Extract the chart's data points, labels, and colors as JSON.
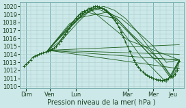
{
  "title": "",
  "xlabel": "Pression niveau de la mer( hPa )",
  "ylabel": "",
  "ylim": [
    1009.8,
    1020.5
  ],
  "xlim": [
    -4,
    148
  ],
  "background_color": "#cce8e8",
  "grid_color": "#aacccc",
  "line_color": "#1a5c1a",
  "marker_color": "#1a5c1a",
  "day_labels": [
    "Dim",
    "Ven",
    "Lun",
    "Mar",
    "Mer",
    "Jeu"
  ],
  "day_positions": [
    2,
    24,
    48,
    96,
    120,
    138
  ],
  "yticks": [
    1010,
    1011,
    1012,
    1013,
    1014,
    1015,
    1016,
    1017,
    1018,
    1019,
    1020
  ],
  "series": [
    {
      "x": [
        0,
        2,
        4,
        6,
        8,
        10,
        12,
        14,
        16,
        18,
        20,
        22,
        24,
        26,
        28,
        30,
        32,
        34,
        36,
        38,
        40,
        42,
        44,
        46,
        48,
        50,
        52,
        54,
        56,
        58,
        60,
        62,
        64,
        66,
        68,
        70,
        72,
        74,
        76,
        78,
        80,
        82,
        84,
        86,
        88,
        90,
        92,
        94,
        96,
        98,
        100,
        102,
        104,
        106,
        108,
        110,
        112,
        114,
        116,
        118,
        120,
        122,
        124,
        126,
        128,
        130,
        132,
        134,
        136,
        138,
        140,
        142,
        144
      ],
      "y": [
        1012.5,
        1012.8,
        1013.0,
        1013.3,
        1013.6,
        1013.8,
        1013.9,
        1014.0,
        1014.1,
        1014.2,
        1014.3,
        1014.4,
        1014.5,
        1014.6,
        1014.8,
        1015.0,
        1015.3,
        1015.7,
        1016.1,
        1016.5,
        1016.9,
        1017.3,
        1017.7,
        1018.1,
        1018.5,
        1018.8,
        1019.0,
        1019.2,
        1019.4,
        1019.5,
        1019.7,
        1019.8,
        1019.9,
        1020.0,
        1020.0,
        1019.9,
        1019.8,
        1019.7,
        1019.5,
        1019.3,
        1019.0,
        1018.7,
        1018.3,
        1017.9,
        1017.4,
        1016.8,
        1016.2,
        1015.6,
        1015.0,
        1014.4,
        1013.8,
        1013.3,
        1012.8,
        1012.4,
        1012.1,
        1011.8,
        1011.6,
        1011.4,
        1011.2,
        1011.1,
        1011.0,
        1010.9,
        1010.8,
        1010.8,
        1010.7,
        1010.8,
        1010.9,
        1011.0,
        1011.2,
        1011.3,
        1011.5,
        1012.0,
        1013.2
      ],
      "marker": true
    },
    {
      "x": [
        22,
        144
      ],
      "y": [
        1014.5,
        1012.2
      ],
      "marker": false
    },
    {
      "x": [
        22,
        144
      ],
      "y": [
        1014.5,
        1013.3
      ],
      "marker": false
    },
    {
      "x": [
        22,
        144
      ],
      "y": [
        1014.5,
        1014.0
      ],
      "marker": false
    },
    {
      "x": [
        22,
        144
      ],
      "y": [
        1014.5,
        1015.2
      ],
      "marker": false
    },
    {
      "x": [
        22,
        60,
        96,
        144
      ],
      "y": [
        1014.5,
        1019.8,
        1015.8,
        1013.3
      ],
      "marker": false
    },
    {
      "x": [
        22,
        54,
        84,
        120,
        144
      ],
      "y": [
        1014.5,
        1019.4,
        1018.5,
        1013.5,
        1013.3
      ],
      "marker": false
    },
    {
      "x": [
        22,
        48,
        78,
        108,
        132,
        144
      ],
      "y": [
        1014.5,
        1018.5,
        1019.3,
        1013.8,
        1010.5,
        1013.3
      ],
      "marker": false
    },
    {
      "x": [
        22,
        42,
        66,
        90,
        108,
        120,
        132,
        144
      ],
      "y": [
        1014.5,
        1017.8,
        1019.8,
        1018.5,
        1016.5,
        1015.0,
        1013.0,
        1013.3
      ],
      "marker": false
    },
    {
      "x": [
        22,
        38,
        56,
        72,
        88,
        100,
        112,
        124,
        136,
        144
      ],
      "y": [
        1014.5,
        1016.8,
        1019.2,
        1019.8,
        1018.2,
        1016.5,
        1015.0,
        1013.5,
        1011.2,
        1013.3
      ],
      "marker": false
    },
    {
      "x": [
        22,
        32,
        44,
        58,
        72,
        84,
        96,
        108,
        118,
        128,
        136,
        144
      ],
      "y": [
        1014.5,
        1015.5,
        1017.5,
        1019.3,
        1019.8,
        1018.8,
        1017.0,
        1015.2,
        1013.8,
        1012.5,
        1011.0,
        1013.3
      ],
      "marker": false
    },
    {
      "x": [
        22,
        28,
        38,
        50,
        62,
        74,
        84,
        94,
        104,
        114,
        122,
        130,
        138,
        144
      ],
      "y": [
        1014.5,
        1014.8,
        1016.2,
        1018.0,
        1019.6,
        1020.0,
        1019.5,
        1018.5,
        1017.0,
        1015.2,
        1013.8,
        1012.5,
        1011.0,
        1013.3
      ],
      "marker": false
    }
  ]
}
